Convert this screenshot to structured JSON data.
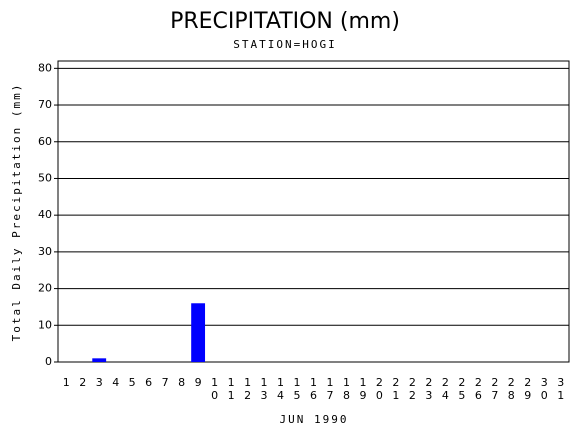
{
  "chart_data": {
    "type": "bar",
    "title": "PRECIPITATION (mm)",
    "subtitle": "STATION=HOGI",
    "y_label": "Total Daily Precipitation (mm)",
    "x_label": "JUN 1990",
    "categories": [
      "1",
      "2",
      "3",
      "4",
      "5",
      "6",
      "7",
      "8",
      "9",
      "10",
      "11",
      "12",
      "13",
      "14",
      "15",
      "16",
      "17",
      "18",
      "19",
      "20",
      "21",
      "22",
      "23",
      "24",
      "25",
      "26",
      "27",
      "28",
      "29",
      "30",
      "31"
    ],
    "values": [
      0,
      0,
      1,
      0,
      0,
      0,
      0,
      0,
      16,
      0,
      0,
      0,
      0,
      0,
      0,
      0,
      0,
      0,
      0,
      0,
      0,
      0,
      0,
      0,
      0,
      0,
      0,
      0,
      0,
      0,
      0
    ],
    "color": "#0000ff",
    "ylim": [
      0,
      82
    ],
    "yticks": [
      0,
      10,
      20,
      30,
      40,
      50,
      60,
      70,
      80
    ],
    "grid": true
  }
}
